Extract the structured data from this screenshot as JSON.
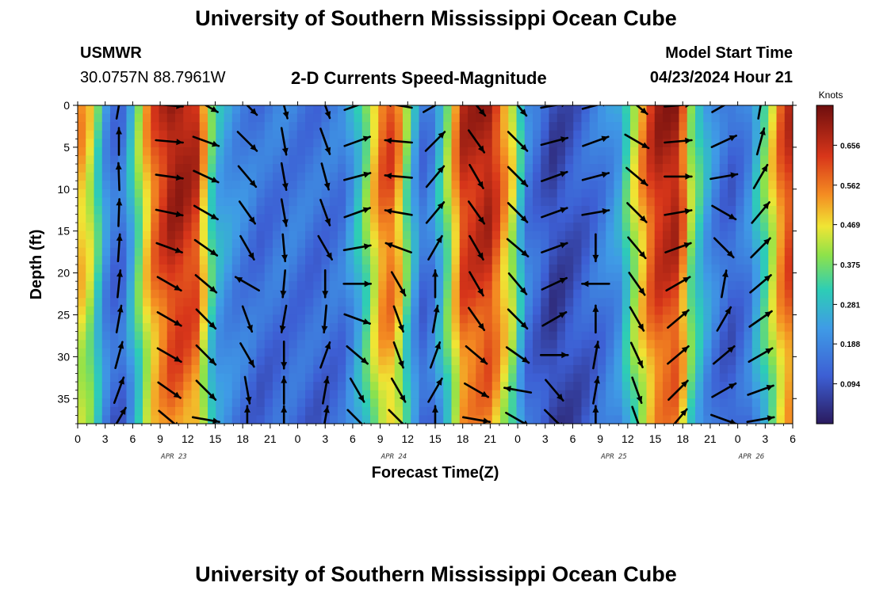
{
  "page": {
    "title": "University of Southern Mississippi Ocean Cube",
    "footer_title": "University of Southern Mississippi Ocean Cube"
  },
  "station": {
    "name": "USMWR",
    "coords": "30.0757N  88.7961W"
  },
  "model": {
    "label": "Model Start Time",
    "time": "04/23/2024 Hour 21"
  },
  "chart_data": {
    "type": "heatmap",
    "title": "2-D Currents Speed-Magnitude",
    "xlabel": "Forecast Time(Z)",
    "ylabel": "Depth (ft)",
    "x_range_hours": [
      0,
      78
    ],
    "y_range_ft": [
      0,
      38
    ],
    "x_tick_labels": [
      "0",
      "3",
      "6",
      "9",
      "12",
      "15",
      "18",
      "21",
      "0",
      "3",
      "6",
      "9",
      "12",
      "15",
      "18",
      "21",
      "0",
      "3",
      "6",
      "9",
      "12",
      "15",
      "18",
      "21",
      "0",
      "3",
      "6"
    ],
    "y_tick_values": [
      0,
      5,
      10,
      15,
      20,
      25,
      30,
      35
    ],
    "date_labels": [
      {
        "label": "APR 23",
        "hour": 10.5
      },
      {
        "label": "APR 24",
        "hour": 34.5
      },
      {
        "label": "APR 25",
        "hour": 58.5
      },
      {
        "label": "APR 26",
        "hour": 73.5
      }
    ],
    "colorbar": {
      "unit": "Knots",
      "min": 0.0,
      "max": 0.75,
      "ticks": [
        0.656,
        0.562,
        0.469,
        0.375,
        0.281,
        0.188,
        0.094
      ]
    },
    "speed_profile": [
      {
        "hour": 0,
        "speed": 0.55
      },
      {
        "hour": 1.5,
        "speed": 0.45
      },
      {
        "hour": 3,
        "speed": 0.22
      },
      {
        "hour": 4.5,
        "speed": 0.12
      },
      {
        "hour": 6,
        "speed": 0.3
      },
      {
        "hour": 8,
        "speed": 0.58
      },
      {
        "hour": 10.5,
        "speed": 0.72
      },
      {
        "hour": 13,
        "speed": 0.66
      },
      {
        "hour": 15,
        "speed": 0.28
      },
      {
        "hour": 17,
        "speed": 0.21
      },
      {
        "hour": 20,
        "speed": 0.15
      },
      {
        "hour": 23,
        "speed": 0.17
      },
      {
        "hour": 26,
        "speed": 0.15
      },
      {
        "hour": 29,
        "speed": 0.17
      },
      {
        "hour": 31,
        "speed": 0.33
      },
      {
        "hour": 33,
        "speed": 0.58
      },
      {
        "hour": 34.5,
        "speed": 0.62
      },
      {
        "hour": 36.5,
        "speed": 0.28
      },
      {
        "hour": 38,
        "speed": 0.12
      },
      {
        "hour": 40,
        "speed": 0.35
      },
      {
        "hour": 42,
        "speed": 0.66
      },
      {
        "hour": 45,
        "speed": 0.7
      },
      {
        "hour": 47.5,
        "speed": 0.45
      },
      {
        "hour": 49,
        "speed": 0.18
      },
      {
        "hour": 52,
        "speed": 0.07
      },
      {
        "hour": 55,
        "speed": 0.12
      },
      {
        "hour": 57,
        "speed": 0.17
      },
      {
        "hour": 59,
        "speed": 0.24
      },
      {
        "hour": 61,
        "speed": 0.48
      },
      {
        "hour": 63,
        "speed": 0.68
      },
      {
        "hour": 65.5,
        "speed": 0.7
      },
      {
        "hour": 67,
        "speed": 0.4
      },
      {
        "hour": 69,
        "speed": 0.22
      },
      {
        "hour": 71,
        "speed": 0.12
      },
      {
        "hour": 73,
        "speed": 0.18
      },
      {
        "hour": 75,
        "speed": 0.38
      },
      {
        "hour": 77,
        "speed": 0.62
      },
      {
        "hour": 78,
        "speed": 0.66
      }
    ],
    "vectors": [
      {
        "hour": 4.5,
        "angles_deg": [
          80,
          90,
          92,
          88,
          86,
          84,
          80,
          75,
          70,
          60
        ]
      },
      {
        "hour": 10,
        "angles_deg": [
          -5,
          -5,
          -8,
          -12,
          -20,
          -30,
          -30,
          -30,
          -35,
          -40
        ]
      },
      {
        "hour": 14,
        "angles_deg": [
          -30,
          -20,
          -25,
          -30,
          -35,
          -40,
          -45,
          -45,
          -45,
          -10
        ]
      },
      {
        "hour": 18.5,
        "angles_deg": [
          -45,
          -45,
          -50,
          -55,
          -60,
          150,
          -70,
          -60,
          -80,
          90
        ]
      },
      {
        "hour": 22.5,
        "angles_deg": [
          -75,
          -80,
          -80,
          -80,
          -85,
          -95,
          -100,
          -90,
          90,
          90
        ]
      },
      {
        "hour": 27,
        "angles_deg": [
          -70,
          -70,
          -75,
          -70,
          -60,
          -90,
          -95,
          70,
          80,
          80
        ]
      },
      {
        "hour": 30.5,
        "angles_deg": [
          20,
          20,
          15,
          20,
          10,
          0,
          -20,
          -40,
          -60,
          -45
        ]
      },
      {
        "hour": 35,
        "angles_deg": [
          170,
          175,
          175,
          170,
          160,
          -60,
          -70,
          -70,
          -60,
          -45
        ]
      },
      {
        "hour": 39,
        "angles_deg": [
          30,
          45,
          50,
          50,
          60,
          90,
          80,
          70,
          60,
          90
        ]
      },
      {
        "hour": 43.5,
        "angles_deg": [
          -50,
          -55,
          -60,
          -55,
          -60,
          -60,
          -55,
          -40,
          -30,
          -10
        ]
      },
      {
        "hour": 48,
        "angles_deg": [
          -50,
          -45,
          -45,
          -45,
          -40,
          -50,
          -45,
          -35,
          170,
          -30
        ]
      },
      {
        "hour": 52,
        "angles_deg": [
          10,
          15,
          20,
          20,
          20,
          25,
          30,
          0,
          -50,
          -45
        ]
      },
      {
        "hour": 56.5,
        "angles_deg": [
          15,
          20,
          15,
          10,
          -90,
          180,
          90,
          80,
          80,
          90
        ]
      },
      {
        "hour": 61,
        "angles_deg": [
          -40,
          -30,
          -40,
          -45,
          -50,
          -55,
          -60,
          -65,
          -70,
          -70
        ]
      },
      {
        "hour": 65.5,
        "angles_deg": [
          5,
          5,
          0,
          10,
          20,
          30,
          40,
          40,
          45,
          50
        ]
      },
      {
        "hour": 70.5,
        "angles_deg": [
          30,
          25,
          10,
          -30,
          -45,
          80,
          60,
          40,
          30,
          -20
        ]
      },
      {
        "hour": 74.5,
        "angles_deg": [
          80,
          75,
          60,
          50,
          45,
          40,
          35,
          30,
          20,
          10
        ]
      }
    ]
  }
}
